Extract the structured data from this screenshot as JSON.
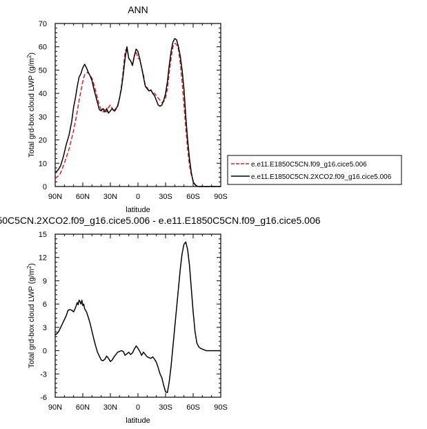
{
  "chart_data": [
    {
      "type": "line",
      "title": "ANN",
      "xlabel": "latitude",
      "ylabel": "Total grd-box cloud LWP (g/m",
      "ylabel_sup": "2",
      "ylabel_close": ")",
      "xlim": [
        90,
        -90
      ],
      "ylim": [
        0,
        70
      ],
      "xticks": [
        90,
        60,
        30,
        0,
        -30,
        -60,
        -90
      ],
      "xtick_labels": [
        "90N",
        "60N",
        "30N",
        "0",
        "30S",
        "60S",
        "90S"
      ],
      "yticks": [
        0,
        10,
        20,
        30,
        40,
        50,
        60,
        70
      ],
      "ytick_labels": [
        "0",
        "10",
        "20",
        "30",
        "40",
        "50",
        "60",
        "70"
      ],
      "legend_position": "right",
      "series": [
        {
          "name": "e.e11.E1850C5CN.f09_g16.cice5.006",
          "color": "#e41a1c",
          "dash": "dashed",
          "x": [
            90,
            85,
            80,
            75,
            70,
            67,
            64,
            62,
            60,
            58,
            55,
            53,
            50,
            48,
            46,
            44,
            42,
            40,
            38,
            36,
            34,
            32,
            30,
            28,
            26,
            24,
            22,
            20,
            18,
            16,
            14,
            12,
            10,
            8,
            6,
            4,
            2,
            0,
            -2,
            -4,
            -6,
            -8,
            -10,
            -12,
            -14,
            -16,
            -18,
            -20,
            -22,
            -24,
            -26,
            -28,
            -30,
            -32,
            -34,
            -36,
            -38,
            -40,
            -42,
            -44,
            -46,
            -48,
            -50,
            -52,
            -54,
            -56,
            -58,
            -60,
            -62,
            -64,
            -66,
            -68,
            -70,
            -72,
            -74,
            -76,
            -78,
            -80,
            -85,
            -90
          ],
          "y": [
            3.5,
            5,
            10,
            16,
            24,
            30,
            37,
            41,
            45,
            48,
            49,
            48.3,
            46.5,
            44,
            41,
            38,
            35,
            33,
            32,
            33.5,
            32,
            34,
            35,
            33.5,
            32,
            33,
            35,
            38,
            43,
            50,
            58,
            59.5,
            55,
            54,
            52,
            56,
            58,
            55,
            55,
            51,
            48,
            43,
            42.5,
            41,
            41.5,
            40,
            40,
            39,
            38,
            37,
            36,
            36.5,
            38,
            42,
            49,
            55,
            60,
            61.5,
            61,
            59,
            53,
            45,
            35,
            25,
            16,
            9,
            5,
            2.5,
            1,
            0.2,
            0,
            0,
            0,
            0,
            0,
            0,
            0,
            0,
            0,
            0
          ]
        },
        {
          "name": "e.e11.E1850C5CN.2XCO2.f09_g16.cice5.006",
          "color": "#000000",
          "dash": "solid",
          "x": [
            90,
            87,
            84,
            81,
            78,
            75,
            72,
            70,
            68,
            66,
            64,
            62,
            60,
            58,
            56,
            54,
            52,
            50,
            48,
            46,
            44,
            42,
            40,
            38,
            36,
            34,
            32,
            30,
            28,
            26,
            24,
            22,
            20,
            18,
            16,
            14,
            12,
            10,
            8,
            6,
            4,
            2,
            0,
            -2,
            -4,
            -6,
            -8,
            -10,
            -12,
            -14,
            -16,
            -18,
            -20,
            -22,
            -24,
            -26,
            -28,
            -30,
            -32,
            -34,
            -36,
            -38,
            -40,
            -42,
            -44,
            -46,
            -48,
            -50,
            -52,
            -54,
            -56,
            -58,
            -60,
            -62,
            -64,
            -66,
            -68,
            -70,
            -72,
            -74,
            -76,
            -78,
            -80,
            -85,
            -90
          ],
          "y": [
            6,
            7,
            9,
            13,
            18,
            22,
            28,
            34,
            38,
            43,
            47,
            48.5,
            51,
            52.5,
            51,
            49,
            47.5,
            45.5,
            42,
            39,
            36,
            33,
            32.5,
            33.5,
            32,
            33.5,
            31.5,
            32.5,
            33.5,
            32.5,
            33.5,
            34.5,
            38,
            42,
            48,
            55,
            60,
            55,
            54,
            52,
            56,
            59,
            58,
            54.5,
            51,
            47,
            43,
            42,
            41,
            41.5,
            40,
            39,
            37,
            35,
            34.5,
            35,
            37,
            40,
            45,
            52,
            58,
            62,
            63.5,
            63,
            60,
            56,
            50,
            42,
            30,
            20,
            12,
            6,
            2,
            0.8,
            0.2,
            0,
            0,
            0,
            0,
            0,
            0,
            0,
            0,
            0,
            0
          ]
        }
      ]
    },
    {
      "type": "line",
      "title": "50C5CN.2XCO2.f09_g16.cice5.006 - e.e11.E1850C5CN.f09_g16.cice5.006",
      "xlabel": "latitude",
      "ylabel": "Total grd-box cloud LWP (g/m",
      "ylabel_sup": "2",
      "ylabel_close": ")",
      "xlim": [
        90,
        -90
      ],
      "ylim": [
        -6,
        15
      ],
      "xticks": [
        90,
        60,
        30,
        0,
        -30,
        -60,
        -90
      ],
      "xtick_labels": [
        "90N",
        "60N",
        "30N",
        "0",
        "30S",
        "60S",
        "90S"
      ],
      "yticks": [
        -6,
        -3,
        0,
        3,
        6,
        9,
        12,
        15
      ],
      "ytick_labels": [
        "-6",
        "-3",
        "0",
        "3",
        "6",
        "9",
        "12",
        "15"
      ],
      "series": [
        {
          "color": "#000000",
          "dash": "solid",
          "x": [
            90,
            88,
            86,
            84,
            82,
            80,
            78,
            76,
            74,
            72,
            70,
            68,
            66,
            65,
            64,
            63,
            62,
            61,
            60,
            59,
            58,
            57,
            56,
            54,
            52,
            50,
            48,
            46,
            44,
            42,
            40,
            38,
            36,
            34,
            32,
            30,
            28,
            26,
            24,
            22,
            20,
            18,
            16,
            14,
            12,
            10,
            8,
            6,
            4,
            2,
            0,
            -2,
            -4,
            -6,
            -8,
            -10,
            -12,
            -14,
            -16,
            -18,
            -20,
            -22,
            -24,
            -26,
            -28,
            -30,
            -32,
            -34,
            -36,
            -38,
            -40,
            -42,
            -44,
            -46,
            -48,
            -50,
            -52,
            -54,
            -56,
            -58,
            -60,
            -62,
            -64,
            -66,
            -68,
            -70,
            -72,
            -74,
            -76,
            -78,
            -80,
            -82,
            -84,
            -86,
            -88,
            -90
          ],
          "y": [
            2,
            2.2,
            2.5,
            3,
            3.5,
            4,
            4.5,
            5.2,
            5.3,
            5.2,
            5.0,
            5.5,
            6.2,
            5.9,
            6.5,
            6.3,
            6.0,
            6.5,
            5.8,
            6.0,
            5.4,
            5.2,
            5.0,
            4.3,
            3.5,
            2.5,
            1.5,
            0.6,
            -0.2,
            -0.7,
            -1.2,
            -1.3,
            -1.1,
            -0.7,
            -1.0,
            -1.4,
            -1.2,
            -0.8,
            -0.5,
            -0.2,
            -0.1,
            0.0,
            -0.1,
            -0.6,
            -0.4,
            -0.2,
            -0.5,
            -0.3,
            0.2,
            0.6,
            0.3,
            -0.1,
            -0.6,
            -0.2,
            -0.5,
            -0.8,
            -0.9,
            -1.0,
            -0.8,
            -1.1,
            -1.5,
            -2.2,
            -3.0,
            -3.5,
            -4.5,
            -5.3,
            -5.4,
            -4.0,
            -2.0,
            0.5,
            3.0,
            5.5,
            8.0,
            10.5,
            12.5,
            13.7,
            14.0,
            13.0,
            11.0,
            8.0,
            5.0,
            2.5,
            1.0,
            0.5,
            0.3,
            0.2,
            0.1,
            0.0,
            0.0,
            0.0,
            0.0,
            0.0,
            0.0,
            0.0,
            0.0,
            0.0
          ]
        }
      ]
    }
  ]
}
